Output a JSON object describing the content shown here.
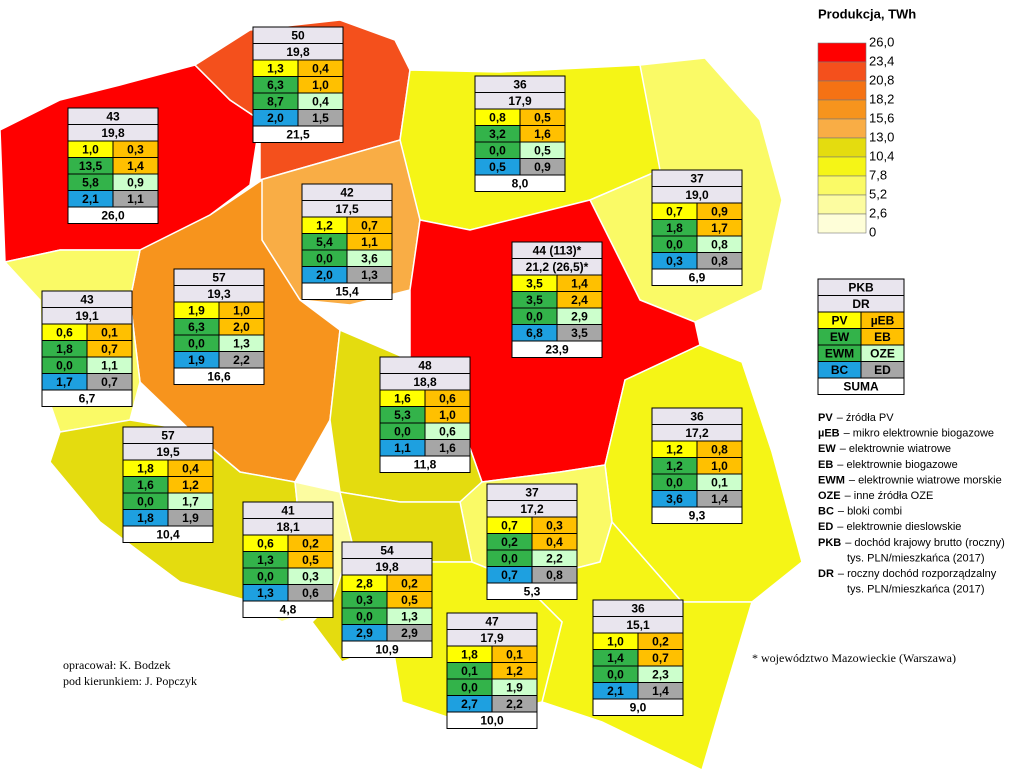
{
  "legend": {
    "title": "Produkcja, TWh",
    "labels": [
      "26,0",
      "23,4",
      "20,8",
      "18,2",
      "15,6",
      "13,0",
      "10,4",
      "7,8",
      "5,2",
      "2,6",
      "0"
    ],
    "colors": [
      "#ff0000",
      "#f4501c",
      "#f57214",
      "#f7941d",
      "#f9ad45",
      "#e4dc0f",
      "#f5f516",
      "#fafa66",
      "#fcfca0",
      "#fefed8"
    ]
  },
  "key": {
    "top": [
      "PKB",
      "DR"
    ],
    "cells": [
      "PV",
      "µEB",
      "EW",
      "EB",
      "EWM",
      "OZE",
      "BC",
      "ED"
    ],
    "bottom": "SUMA"
  },
  "definitions": [
    {
      "abbr": "PV",
      "lines": [
        "– źródła PV"
      ]
    },
    {
      "abbr": "µEB",
      "lines": [
        "– mikro elektrownie biogazowe"
      ]
    },
    {
      "abbr": "EW",
      "lines": [
        "– elektrownie wiatrowe"
      ]
    },
    {
      "abbr": "EB",
      "lines": [
        "– elektrownie biogazowe"
      ]
    },
    {
      "abbr": "EWM",
      "lines": [
        "– elektrownie wiatrowe morskie"
      ]
    },
    {
      "abbr": "OZE",
      "lines": [
        "– inne źródła OZE"
      ]
    },
    {
      "abbr": "BC",
      "lines": [
        "– bloki combi"
      ]
    },
    {
      "abbr": "ED",
      "lines": [
        "– elektrownie dieslowskie"
      ]
    },
    {
      "abbr": "PKB",
      "lines": [
        "– dochód krajowy brutto (roczny)",
        "tys. PLN/mieszkańca (2017)"
      ]
    },
    {
      "abbr": "DR",
      "lines": [
        "– roczny dochód rozporządzalny",
        "tys. PLN/mieszkańca (2017)"
      ]
    }
  ],
  "footnote": "* województwo Mazowieckie (Warszawa)",
  "credits": [
    "opracował: K. Bodzek",
    "pod kierunkiem: J. Popczyk"
  ],
  "regions": [
    {
      "pkb": "43",
      "dr": "19,8",
      "cells": [
        "1,0",
        "0,3",
        "13,5",
        "1,4",
        "5,8",
        "0,9",
        "2,1",
        "1,1"
      ],
      "suma": "26,0"
    },
    {
      "pkb": "50",
      "dr": "19,8",
      "cells": [
        "1,3",
        "0,4",
        "6,3",
        "1,0",
        "8,7",
        "0,4",
        "2,0",
        "1,5"
      ],
      "suma": "21,5"
    },
    {
      "pkb": "36",
      "dr": "17,9",
      "cells": [
        "0,8",
        "0,5",
        "3,2",
        "1,6",
        "0,0",
        "0,5",
        "0,5",
        "0,9"
      ],
      "suma": "8,0"
    },
    {
      "pkb": "42",
      "dr": "17,5",
      "cells": [
        "1,2",
        "0,7",
        "5,4",
        "1,1",
        "0,0",
        "3,6",
        "2,0",
        "1,3"
      ],
      "suma": "15,4"
    },
    {
      "pkb": "37",
      "dr": "19,0",
      "cells": [
        "0,7",
        "0,9",
        "1,8",
        "1,7",
        "0,0",
        "0,8",
        "0,3",
        "0,8"
      ],
      "suma": "6,9"
    },
    {
      "pkb": "44 (113)*",
      "dr": "21,2 (26,5)*",
      "cells": [
        "3,5",
        "1,4",
        "3,5",
        "2,4",
        "0,0",
        "2,9",
        "6,8",
        "3,5"
      ],
      "suma": "23,9"
    },
    {
      "pkb": "57",
      "dr": "19,3",
      "cells": [
        "1,9",
        "1,0",
        "6,3",
        "2,0",
        "0,0",
        "1,3",
        "1,9",
        "2,2"
      ],
      "suma": "16,6"
    },
    {
      "pkb": "43",
      "dr": "19,1",
      "cells": [
        "0,6",
        "0,1",
        "1,8",
        "0,7",
        "0,0",
        "1,1",
        "1,7",
        "0,7"
      ],
      "suma": "6,7"
    },
    {
      "pkb": "48",
      "dr": "18,8",
      "cells": [
        "1,6",
        "0,6",
        "5,3",
        "1,0",
        "0,0",
        "0,6",
        "1,1",
        "1,6"
      ],
      "suma": "11,8"
    },
    {
      "pkb": "36",
      "dr": "17,2",
      "cells": [
        "1,2",
        "0,8",
        "1,2",
        "1,0",
        "0,0",
        "0,1",
        "3,6",
        "1,4"
      ],
      "suma": "9,3"
    },
    {
      "pkb": "57",
      "dr": "19,5",
      "cells": [
        "1,8",
        "0,4",
        "1,6",
        "1,2",
        "0,0",
        "1,7",
        "1,8",
        "1,9"
      ],
      "suma": "10,4"
    },
    {
      "pkb": "37",
      "dr": "17,2",
      "cells": [
        "0,7",
        "0,3",
        "0,2",
        "0,4",
        "0,0",
        "2,2",
        "0,7",
        "0,8"
      ],
      "suma": "5,3"
    },
    {
      "pkb": "41",
      "dr": "18,1",
      "cells": [
        "0,6",
        "0,2",
        "1,3",
        "0,5",
        "0,0",
        "0,3",
        "1,3",
        "0,6"
      ],
      "suma": "4,8"
    },
    {
      "pkb": "54",
      "dr": "19,8",
      "cells": [
        "2,8",
        "0,2",
        "0,3",
        "0,5",
        "0,0",
        "1,3",
        "2,9",
        "2,9"
      ],
      "suma": "10,9"
    },
    {
      "pkb": "36",
      "dr": "15,1",
      "cells": [
        "1,0",
        "0,2",
        "1,4",
        "0,7",
        "0,0",
        "2,3",
        "2,1",
        "1,4"
      ],
      "suma": "9,0"
    },
    {
      "pkb": "47",
      "dr": "17,9",
      "cells": [
        "1,8",
        "0,1",
        "0,1",
        "1,2",
        "0,0",
        "1,9",
        "2,7",
        "2,2"
      ],
      "suma": "10,0"
    }
  ]
}
